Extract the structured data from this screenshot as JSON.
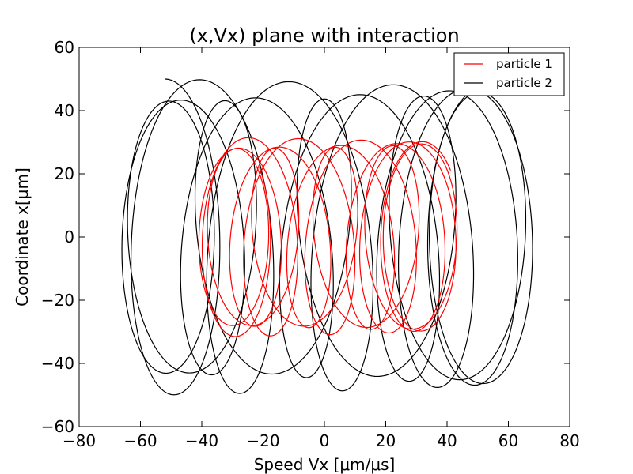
{
  "chart_data": {
    "type": "line",
    "title": "(x,Vx) plane with interaction",
    "xlabel": "Speed Vx [μm/μs]",
    "ylabel": "Coordinate x[μm]",
    "xlim": [
      -80,
      80
    ],
    "ylim": [
      -60,
      60
    ],
    "xticks": [
      -80,
      -60,
      -40,
      -20,
      0,
      20,
      40,
      60,
      80
    ],
    "yticks": [
      -60,
      -40,
      -20,
      0,
      20,
      40,
      60
    ],
    "xtick_labels": [
      "−80",
      "−60",
      "−40",
      "−20",
      "0",
      "20",
      "40",
      "60",
      "80"
    ],
    "ytick_labels": [
      "−60",
      "−40",
      "−20",
      "0",
      "20",
      "40",
      "60"
    ],
    "grid": false,
    "legend_position": "top-right",
    "series": [
      {
        "name": "particle 1",
        "color": "#ff0000",
        "loops": 14,
        "center_x_range": [
          -30,
          32
        ],
        "radius_x_range": [
          11.5,
          13
        ],
        "radius_y_range": [
          28,
          31.5
        ],
        "start": [
          20,
          28
        ],
        "end": [
          32,
          28
        ]
      },
      {
        "name": "particle 2",
        "color": "#000000",
        "loops": 14,
        "center_x_range": [
          -52,
          52
        ],
        "radius_x_range": [
          16,
          18
        ],
        "radius_y_range": [
          43,
          50
        ],
        "start": [
          25,
          0
        ],
        "end": [
          9,
          46
        ]
      }
    ]
  }
}
